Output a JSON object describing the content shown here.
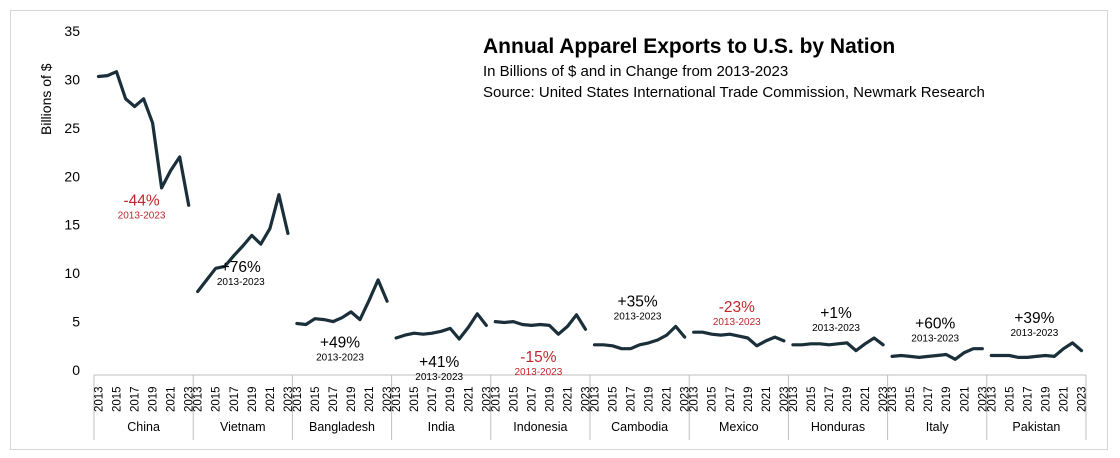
{
  "chart_data": {
    "type": "line",
    "title": "Annual Apparel Exports to U.S. by Nation",
    "subtitle_lines": [
      "In Billions of $ and in Change from 2013-2023",
      "Source: United States International Trade Commission, Newmark Research"
    ],
    "ylabel": "Billions of $",
    "ylim": [
      0,
      35
    ],
    "yticks": [
      "0",
      "5",
      "10",
      "15",
      "20",
      "25",
      "30",
      "35"
    ],
    "x_tick_labels": [
      "2013",
      "2015",
      "2017",
      "2019",
      "2021",
      "2023"
    ],
    "years": [
      2013,
      2014,
      2015,
      2016,
      2017,
      2018,
      2019,
      2020,
      2021,
      2022,
      2023
    ],
    "line_color": "#1b2f3b",
    "positive_color": "#000000",
    "negative_color": "#c0272d",
    "period_label": "2013-2023",
    "groups": [
      {
        "name": "China",
        "change": "-44%",
        "negative": true,
        "label_pos": "low",
        "values": [
          30.3,
          30.4,
          30.8,
          28.0,
          27.2,
          28.0,
          25.5,
          18.8,
          20.6,
          22.0,
          17.0
        ]
      },
      {
        "name": "Vietnam",
        "change": "+76%",
        "negative": false,
        "label_pos": "low",
        "values": [
          8.1,
          9.3,
          10.5,
          10.7,
          11.8,
          12.8,
          13.9,
          13.0,
          14.6,
          18.1,
          14.1
        ]
      },
      {
        "name": "Bangladesh",
        "change": "+49%",
        "negative": false,
        "label_pos": "low",
        "values": [
          4.8,
          4.7,
          5.3,
          5.2,
          5.0,
          5.4,
          6.0,
          5.2,
          7.2,
          9.3,
          7.1
        ]
      },
      {
        "name": "India",
        "change": "+41%",
        "negative": false,
        "label_pos": "low",
        "values": [
          3.3,
          3.6,
          3.8,
          3.7,
          3.8,
          4.0,
          4.3,
          3.2,
          4.4,
          5.8,
          4.6
        ]
      },
      {
        "name": "Indonesia",
        "change": "-15%",
        "negative": true,
        "label_pos": "low",
        "values": [
          5.0,
          4.9,
          5.0,
          4.7,
          4.6,
          4.7,
          4.6,
          3.7,
          4.5,
          5.7,
          4.2
        ]
      },
      {
        "name": "Cambodia",
        "change": "+35%",
        "negative": false,
        "label_pos": "high",
        "values": [
          2.6,
          2.6,
          2.5,
          2.2,
          2.2,
          2.6,
          2.8,
          3.1,
          3.6,
          4.5,
          3.4
        ]
      },
      {
        "name": "Mexico",
        "change": "-23%",
        "negative": true,
        "label_pos": "high",
        "values": [
          3.9,
          3.9,
          3.7,
          3.6,
          3.7,
          3.5,
          3.3,
          2.5,
          3.0,
          3.4,
          3.0
        ]
      },
      {
        "name": "Honduras",
        "change": "+1%",
        "negative": false,
        "label_pos": "high",
        "values": [
          2.6,
          2.6,
          2.7,
          2.7,
          2.6,
          2.7,
          2.8,
          2.0,
          2.7,
          3.3,
          2.6
        ]
      },
      {
        "name": "Italy",
        "change": "+60%",
        "negative": false,
        "label_pos": "high",
        "values": [
          1.4,
          1.5,
          1.4,
          1.3,
          1.4,
          1.5,
          1.6,
          1.1,
          1.8,
          2.2,
          2.2
        ]
      },
      {
        "name": "Pakistan",
        "change": "+39%",
        "negative": false,
        "label_pos": "high",
        "values": [
          1.5,
          1.5,
          1.5,
          1.3,
          1.3,
          1.4,
          1.5,
          1.4,
          2.2,
          2.8,
          2.0
        ]
      }
    ]
  }
}
